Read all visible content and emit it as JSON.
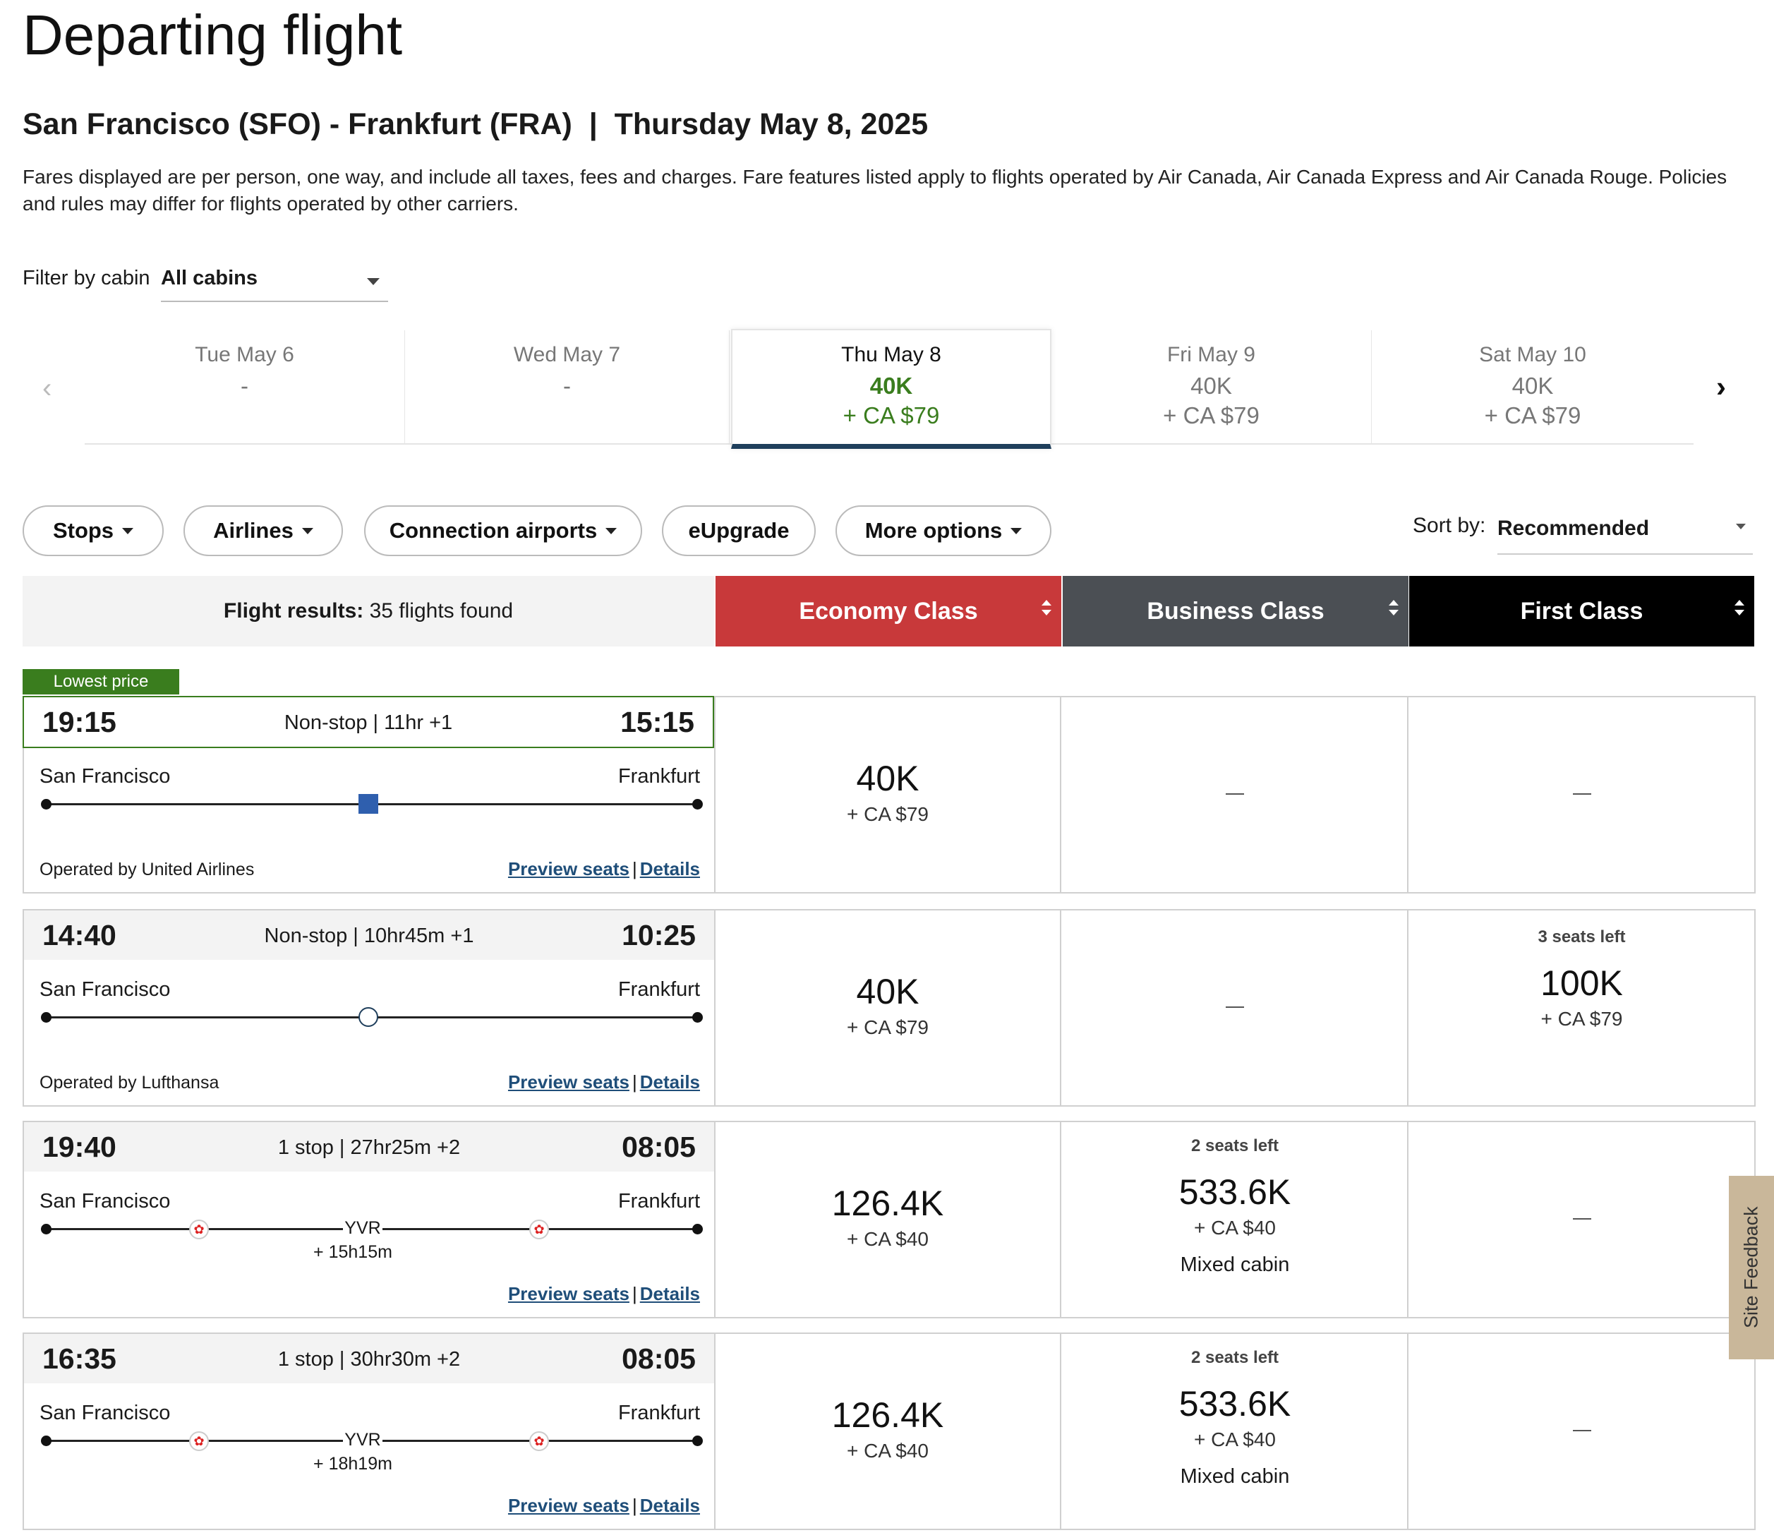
{
  "title": "Departing flight",
  "route": "San Francisco (SFO) - Frankfurt (FRA)  |  Thursday May 8, 2025",
  "disclaimer": "Fares displayed are per person, one way, and include all taxes, fees and charges. Fare features listed apply to flights operated by Air Canada, Air Canada Express and Air Canada Rouge. Policies and rules may differ for flights operated by other carriers.",
  "filter": {
    "label": "Filter by cabin",
    "value": "All cabins"
  },
  "dates": [
    {
      "day": "Tue May 6",
      "points": "-",
      "cash": ""
    },
    {
      "day": "Wed May 7",
      "points": "-",
      "cash": ""
    },
    {
      "day": "Thu May 8",
      "points": "40K",
      "cash": "+ CA $79"
    },
    {
      "day": "Fri May 9",
      "points": "40K",
      "cash": "+ CA $79"
    },
    {
      "day": "Sat May 10",
      "points": "40K",
      "cash": "+ CA $79"
    }
  ],
  "pills": [
    "Stops",
    "Airlines",
    "Connection airports",
    "eUpgrade",
    "More options"
  ],
  "sort": {
    "label": "Sort by:",
    "value": "Recommended"
  },
  "results": {
    "label": "Flight results:",
    "count": "35 flights found"
  },
  "cabins": [
    {
      "name": "Economy Class",
      "color": "#c8393a"
    },
    {
      "name": "Business Class",
      "color": "#4b4f54"
    },
    {
      "name": "First Class",
      "color": "#000000"
    }
  ],
  "lowest_badge": "Lowest price",
  "flights": [
    {
      "dep": "19:15",
      "arr": "15:15",
      "duration": "Non-stop | 11hr +1",
      "from": "San Francisco",
      "to": "Frankfurt",
      "operated": "Operated by United Airlines",
      "economy": {
        "points": "40K",
        "cash": "+ CA $79"
      },
      "business": null,
      "first": null
    },
    {
      "dep": "14:40",
      "arr": "10:25",
      "duration": "Non-stop | 10hr45m +1",
      "from": "San Francisco",
      "to": "Frankfurt",
      "operated": "Operated by Lufthansa",
      "economy": {
        "points": "40K",
        "cash": "+ CA $79"
      },
      "business": null,
      "first": {
        "seats": "3 seats left",
        "points": "100K",
        "cash": "+ CA $79"
      }
    },
    {
      "dep": "19:40",
      "arr": "08:05",
      "duration": "1 stop | 27hr25m +2",
      "from": "San Francisco",
      "to": "Frankfurt",
      "stop": "YVR",
      "layover": "+ 15h15m",
      "economy": {
        "points": "126.4K",
        "cash": "+ CA $40"
      },
      "business": {
        "seats": "2 seats left",
        "points": "533.6K",
        "cash": "+ CA $40",
        "note": "Mixed cabin"
      },
      "first": null
    },
    {
      "dep": "16:35",
      "arr": "08:05",
      "duration": "1 stop | 30hr30m +2",
      "from": "San Francisco",
      "to": "Frankfurt",
      "stop": "YVR",
      "layover": "+ 18h19m",
      "economy": {
        "points": "126.4K",
        "cash": "+ CA $40"
      },
      "business": {
        "seats": "2 seats left",
        "points": "533.6K",
        "cash": "+ CA $40",
        "note": "Mixed cabin"
      },
      "first": null
    }
  ],
  "links": {
    "preview": "Preview seats",
    "details": "Details"
  },
  "feedback": "Site Feedback"
}
